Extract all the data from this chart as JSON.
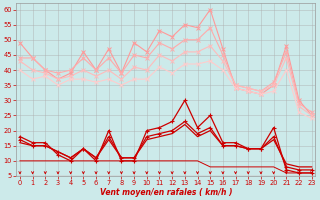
{
  "x": [
    0,
    1,
    2,
    3,
    4,
    5,
    6,
    7,
    8,
    9,
    10,
    11,
    12,
    13,
    14,
    15,
    16,
    17,
    18,
    19,
    20,
    21,
    22,
    23
  ],
  "series": [
    {
      "name": "rafales_top",
      "color": "#ff9999",
      "lw": 0.8,
      "marker": "x",
      "markersize": 2.5,
      "markeredgewidth": 0.7,
      "values": [
        49,
        44,
        40,
        37,
        39,
        46,
        40,
        47,
        39,
        49,
        46,
        53,
        51,
        55,
        54,
        60,
        47,
        34,
        33,
        32,
        35,
        48,
        30,
        25
      ]
    },
    {
      "name": "rafales_high",
      "color": "#ffaaaa",
      "lw": 0.8,
      "marker": "x",
      "markersize": 2.5,
      "markeredgewidth": 0.7,
      "values": [
        44,
        44,
        40,
        39,
        40,
        44,
        40,
        44,
        39,
        45,
        44,
        49,
        47,
        50,
        50,
        54,
        45,
        35,
        34,
        33,
        36,
        46,
        29,
        26
      ]
    },
    {
      "name": "rafales_mid",
      "color": "#ffbbbb",
      "lw": 0.8,
      "marker": "x",
      "markersize": 2.5,
      "markeredgewidth": 0.7,
      "values": [
        43,
        40,
        39,
        37,
        38,
        40,
        38,
        40,
        37,
        41,
        40,
        45,
        43,
        46,
        46,
        48,
        43,
        35,
        34,
        33,
        35,
        44,
        28,
        25
      ]
    },
    {
      "name": "rafales_low",
      "color": "#ffcccc",
      "lw": 0.8,
      "marker": "x",
      "markersize": 2.5,
      "markeredgewidth": 0.7,
      "values": [
        40,
        37,
        38,
        35,
        37,
        37,
        36,
        37,
        35,
        37,
        37,
        41,
        39,
        42,
        42,
        43,
        40,
        34,
        33,
        32,
        33,
        40,
        26,
        24
      ]
    },
    {
      "name": "vent_top",
      "color": "#cc0000",
      "lw": 0.9,
      "marker": "+",
      "markersize": 3,
      "markeredgewidth": 0.8,
      "values": [
        18,
        16,
        16,
        12,
        10,
        14,
        10,
        20,
        10,
        10,
        20,
        21,
        23,
        30,
        21,
        25,
        16,
        16,
        14,
        14,
        21,
        7,
        6,
        6
      ]
    },
    {
      "name": "vent_mid",
      "color": "#cc0000",
      "lw": 0.9,
      "marker": "+",
      "markersize": 3,
      "markeredgewidth": 0.8,
      "values": [
        17,
        15,
        15,
        13,
        11,
        14,
        11,
        18,
        11,
        11,
        18,
        19,
        20,
        23,
        19,
        21,
        15,
        15,
        14,
        14,
        18,
        8,
        7,
        7
      ]
    },
    {
      "name": "vent_mean",
      "color": "#cc0000",
      "lw": 0.9,
      "marker": null,
      "markersize": 0,
      "markeredgewidth": 0.5,
      "values": [
        16,
        15,
        15,
        13,
        11,
        14,
        11,
        17,
        11,
        11,
        17,
        18,
        19,
        22,
        18,
        20,
        15,
        15,
        14,
        14,
        17,
        9,
        8,
        8
      ]
    },
    {
      "name": "vent_low",
      "color": "#cc0000",
      "lw": 0.7,
      "marker": null,
      "markersize": 0,
      "markeredgewidth": 0.5,
      "values": [
        10,
        10,
        10,
        10,
        10,
        10,
        10,
        10,
        10,
        10,
        10,
        10,
        10,
        10,
        10,
        8,
        8,
        8,
        8,
        8,
        8,
        6,
        6,
        6
      ]
    }
  ],
  "yticks": [
    5,
    10,
    15,
    20,
    25,
    30,
    35,
    40,
    45,
    50,
    55,
    60
  ],
  "xticks": [
    0,
    1,
    2,
    3,
    4,
    5,
    6,
    7,
    8,
    9,
    10,
    11,
    12,
    13,
    14,
    15,
    16,
    17,
    18,
    19,
    20,
    21,
    22,
    23
  ],
  "xlabel": "Vent moyen/en rafales ( km/h )",
  "ylim": [
    5,
    62
  ],
  "xlim": [
    -0.3,
    23.3
  ],
  "bg_color": "#cceaea",
  "grid_color": "#aaaaaa",
  "arrow_color": "#cc0000",
  "tick_color": "#cc0000",
  "label_fontsize": 5.5,
  "tick_fontsize": 4.8
}
